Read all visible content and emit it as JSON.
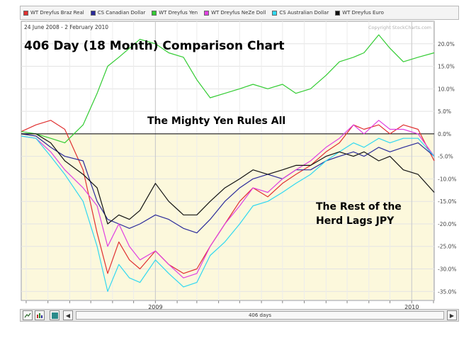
{
  "legend": [
    {
      "label": "WT Dreyfus Braz Real",
      "color": "#e03030"
    },
    {
      "label": "CS Canadian Dollar",
      "color": "#2a2a9a"
    },
    {
      "label": "WT Dreyfus Yen",
      "color": "#33cc33"
    },
    {
      "label": "WT Dreyfus NeZe Doll",
      "color": "#e040e0"
    },
    {
      "label": "CS Australian Dollar",
      "color": "#30d8f0"
    },
    {
      "label": "WT Dreyfus Euro",
      "color": "#111111"
    }
  ],
  "date_range": "24 June 2008 - 2 February 2010",
  "copyright": "Copyright StockCharts.com",
  "annotations": {
    "title": "406 Day (18 Month) Comparison Chart",
    "yen_note": "The Mighty Yen Rules All",
    "rest_note_line1": "The Rest of the",
    "rest_note_line2": "Herd Lags JPY"
  },
  "toolbar": {
    "range_label": "406 days",
    "prev_glyph": "◀",
    "next_glyph": "▶"
  },
  "chart_data": {
    "type": "line",
    "title": "406 Day (18 Month) Comparison Chart",
    "xlabel": "",
    "ylabel": "",
    "x_ticks": [
      "2009",
      "2010"
    ],
    "y_ticks": [
      20.0,
      15.0,
      10.0,
      5.0,
      0.0,
      -5.0,
      -10.0,
      -15.0,
      -20.0,
      -25.0,
      -30.0,
      -35.0
    ],
    "y_tick_labels": [
      "20.0%",
      "15.0%",
      "10.0%",
      "5.0%",
      "0.0%",
      "-5.0%",
      "-10.0%",
      "-15.0%",
      "-20.0%",
      "-25.0%",
      "-30.0%",
      "-35.0%"
    ],
    "ylim": [
      -37,
      25
    ],
    "x_range": [
      "2008-06-24",
      "2010-02-02"
    ],
    "grid": true,
    "series": [
      {
        "name": "WT Dreyfus Braz Real",
        "color": "#e03030",
        "x": [
          "2008-06-24",
          "2008-07-15",
          "2008-08-05",
          "2008-08-25",
          "2008-09-20",
          "2008-10-10",
          "2008-10-25",
          "2008-11-10",
          "2008-11-25",
          "2008-12-10",
          "2009-01-01",
          "2009-01-20",
          "2009-02-10",
          "2009-03-01",
          "2009-03-20",
          "2009-04-10",
          "2009-05-01",
          "2009-05-20",
          "2009-06-10",
          "2009-07-01",
          "2009-07-20",
          "2009-08-10",
          "2009-09-01",
          "2009-09-20",
          "2009-10-10",
          "2009-10-25",
          "2009-11-15",
          "2009-12-01",
          "2009-12-20",
          "2010-01-10",
          "2010-02-02"
        ],
        "y": [
          0.5,
          2,
          3,
          1,
          -8,
          -22,
          -31,
          -24,
          -28,
          -30,
          -26,
          -29,
          -31,
          -30,
          -25,
          -20,
          -15,
          -12,
          -14,
          -11,
          -9,
          -7,
          -4,
          -2,
          2,
          1,
          2,
          0,
          2,
          1,
          -6
        ]
      },
      {
        "name": "CS Canadian Dollar",
        "color": "#2a2a9a",
        "x": [
          "2008-06-24",
          "2008-07-15",
          "2008-08-05",
          "2008-08-25",
          "2008-09-20",
          "2008-10-10",
          "2008-10-25",
          "2008-11-10",
          "2008-11-25",
          "2008-12-10",
          "2009-01-01",
          "2009-01-20",
          "2009-02-10",
          "2009-03-01",
          "2009-03-20",
          "2009-04-10",
          "2009-05-01",
          "2009-05-20",
          "2009-06-10",
          "2009-07-01",
          "2009-07-20",
          "2009-08-10",
          "2009-09-01",
          "2009-09-20",
          "2009-10-10",
          "2009-10-25",
          "2009-11-15",
          "2009-12-01",
          "2009-12-20",
          "2010-01-10",
          "2010-02-02"
        ],
        "y": [
          0,
          -0.5,
          -3,
          -5,
          -6,
          -15,
          -19,
          -20,
          -21,
          -20,
          -18,
          -19,
          -21,
          -22,
          -19,
          -15,
          -12,
          -10,
          -9,
          -10,
          -8,
          -8,
          -6,
          -5,
          -4,
          -5,
          -3,
          -4,
          -3,
          -2,
          -5
        ]
      },
      {
        "name": "WT Dreyfus Yen",
        "color": "#33cc33",
        "x": [
          "2008-06-24",
          "2008-07-15",
          "2008-08-05",
          "2008-08-25",
          "2008-09-20",
          "2008-10-10",
          "2008-10-25",
          "2008-11-10",
          "2008-11-25",
          "2008-12-10",
          "2009-01-01",
          "2009-01-20",
          "2009-02-10",
          "2009-03-01",
          "2009-03-20",
          "2009-04-10",
          "2009-05-01",
          "2009-05-20",
          "2009-06-10",
          "2009-07-01",
          "2009-07-20",
          "2009-08-10",
          "2009-09-01",
          "2009-09-20",
          "2009-10-10",
          "2009-10-25",
          "2009-11-15",
          "2009-12-01",
          "2009-12-20",
          "2010-01-10",
          "2010-02-02"
        ],
        "y": [
          0.5,
          0,
          -1,
          -2,
          2,
          9,
          15,
          17,
          19,
          21,
          20,
          18,
          17,
          12,
          8,
          9,
          10,
          11,
          10,
          11,
          9,
          10,
          13,
          16,
          17,
          18,
          22,
          19,
          16,
          17,
          18
        ]
      },
      {
        "name": "WT Dreyfus NeZe Doll",
        "color": "#e040e0",
        "x": [
          "2008-06-24",
          "2008-07-15",
          "2008-08-05",
          "2008-08-25",
          "2008-09-20",
          "2008-10-10",
          "2008-10-25",
          "2008-11-10",
          "2008-11-25",
          "2008-12-10",
          "2009-01-01",
          "2009-01-20",
          "2009-02-10",
          "2009-03-01",
          "2009-03-20",
          "2009-04-10",
          "2009-05-01",
          "2009-05-20",
          "2009-06-10",
          "2009-07-01",
          "2009-07-20",
          "2009-08-10",
          "2009-09-01",
          "2009-09-20",
          "2009-10-10",
          "2009-10-25",
          "2009-11-15",
          "2009-12-01",
          "2009-12-20",
          "2010-01-10",
          "2010-02-02"
        ],
        "y": [
          -0.5,
          -1,
          -4,
          -8,
          -12,
          -16,
          -25,
          -20,
          -25,
          -28,
          -26,
          -29,
          -32,
          -31,
          -25,
          -20,
          -16,
          -12,
          -13,
          -10,
          -8,
          -6,
          -3,
          -1,
          2,
          0,
          3,
          1,
          1,
          0,
          -5
        ]
      },
      {
        "name": "CS Australian Dollar",
        "color": "#30d8f0",
        "x": [
          "2008-06-24",
          "2008-07-15",
          "2008-08-05",
          "2008-08-25",
          "2008-09-20",
          "2008-10-10",
          "2008-10-25",
          "2008-11-10",
          "2008-11-25",
          "2008-12-10",
          "2009-01-01",
          "2009-01-20",
          "2009-02-10",
          "2009-03-01",
          "2009-03-20",
          "2009-04-10",
          "2009-05-01",
          "2009-05-20",
          "2009-06-10",
          "2009-07-01",
          "2009-07-20",
          "2009-08-10",
          "2009-09-01",
          "2009-09-20",
          "2009-10-10",
          "2009-10-25",
          "2009-11-15",
          "2009-12-01",
          "2009-12-20",
          "2010-01-10",
          "2010-02-02"
        ],
        "y": [
          -0.5,
          -1,
          -5,
          -9,
          -15,
          -25,
          -35,
          -29,
          -32,
          -33,
          -28,
          -31,
          -34,
          -33,
          -27,
          -24,
          -20,
          -16,
          -15,
          -13,
          -11,
          -9,
          -6,
          -4,
          -2,
          -3,
          -1,
          -2,
          -1,
          -1,
          -5
        ]
      },
      {
        "name": "WT Dreyfus Euro",
        "color": "#111111",
        "x": [
          "2008-06-24",
          "2008-07-15",
          "2008-08-05",
          "2008-08-25",
          "2008-09-20",
          "2008-10-10",
          "2008-10-25",
          "2008-11-10",
          "2008-11-25",
          "2008-12-10",
          "2009-01-01",
          "2009-01-20",
          "2009-02-10",
          "2009-03-01",
          "2009-03-20",
          "2009-04-10",
          "2009-05-01",
          "2009-05-20",
          "2009-06-10",
          "2009-07-01",
          "2009-07-20",
          "2009-08-10",
          "2009-09-01",
          "2009-09-20",
          "2009-10-10",
          "2009-10-25",
          "2009-11-15",
          "2009-12-01",
          "2009-12-20",
          "2010-01-10",
          "2010-02-02"
        ],
        "y": [
          0,
          0,
          -2,
          -6,
          -9,
          -12,
          -20,
          -18,
          -19,
          -17,
          -11,
          -15,
          -18,
          -18,
          -15,
          -12,
          -10,
          -8,
          -9,
          -8,
          -7,
          -7,
          -5,
          -4,
          -5,
          -4,
          -6,
          -5,
          -8,
          -9,
          -13
        ]
      }
    ]
  }
}
